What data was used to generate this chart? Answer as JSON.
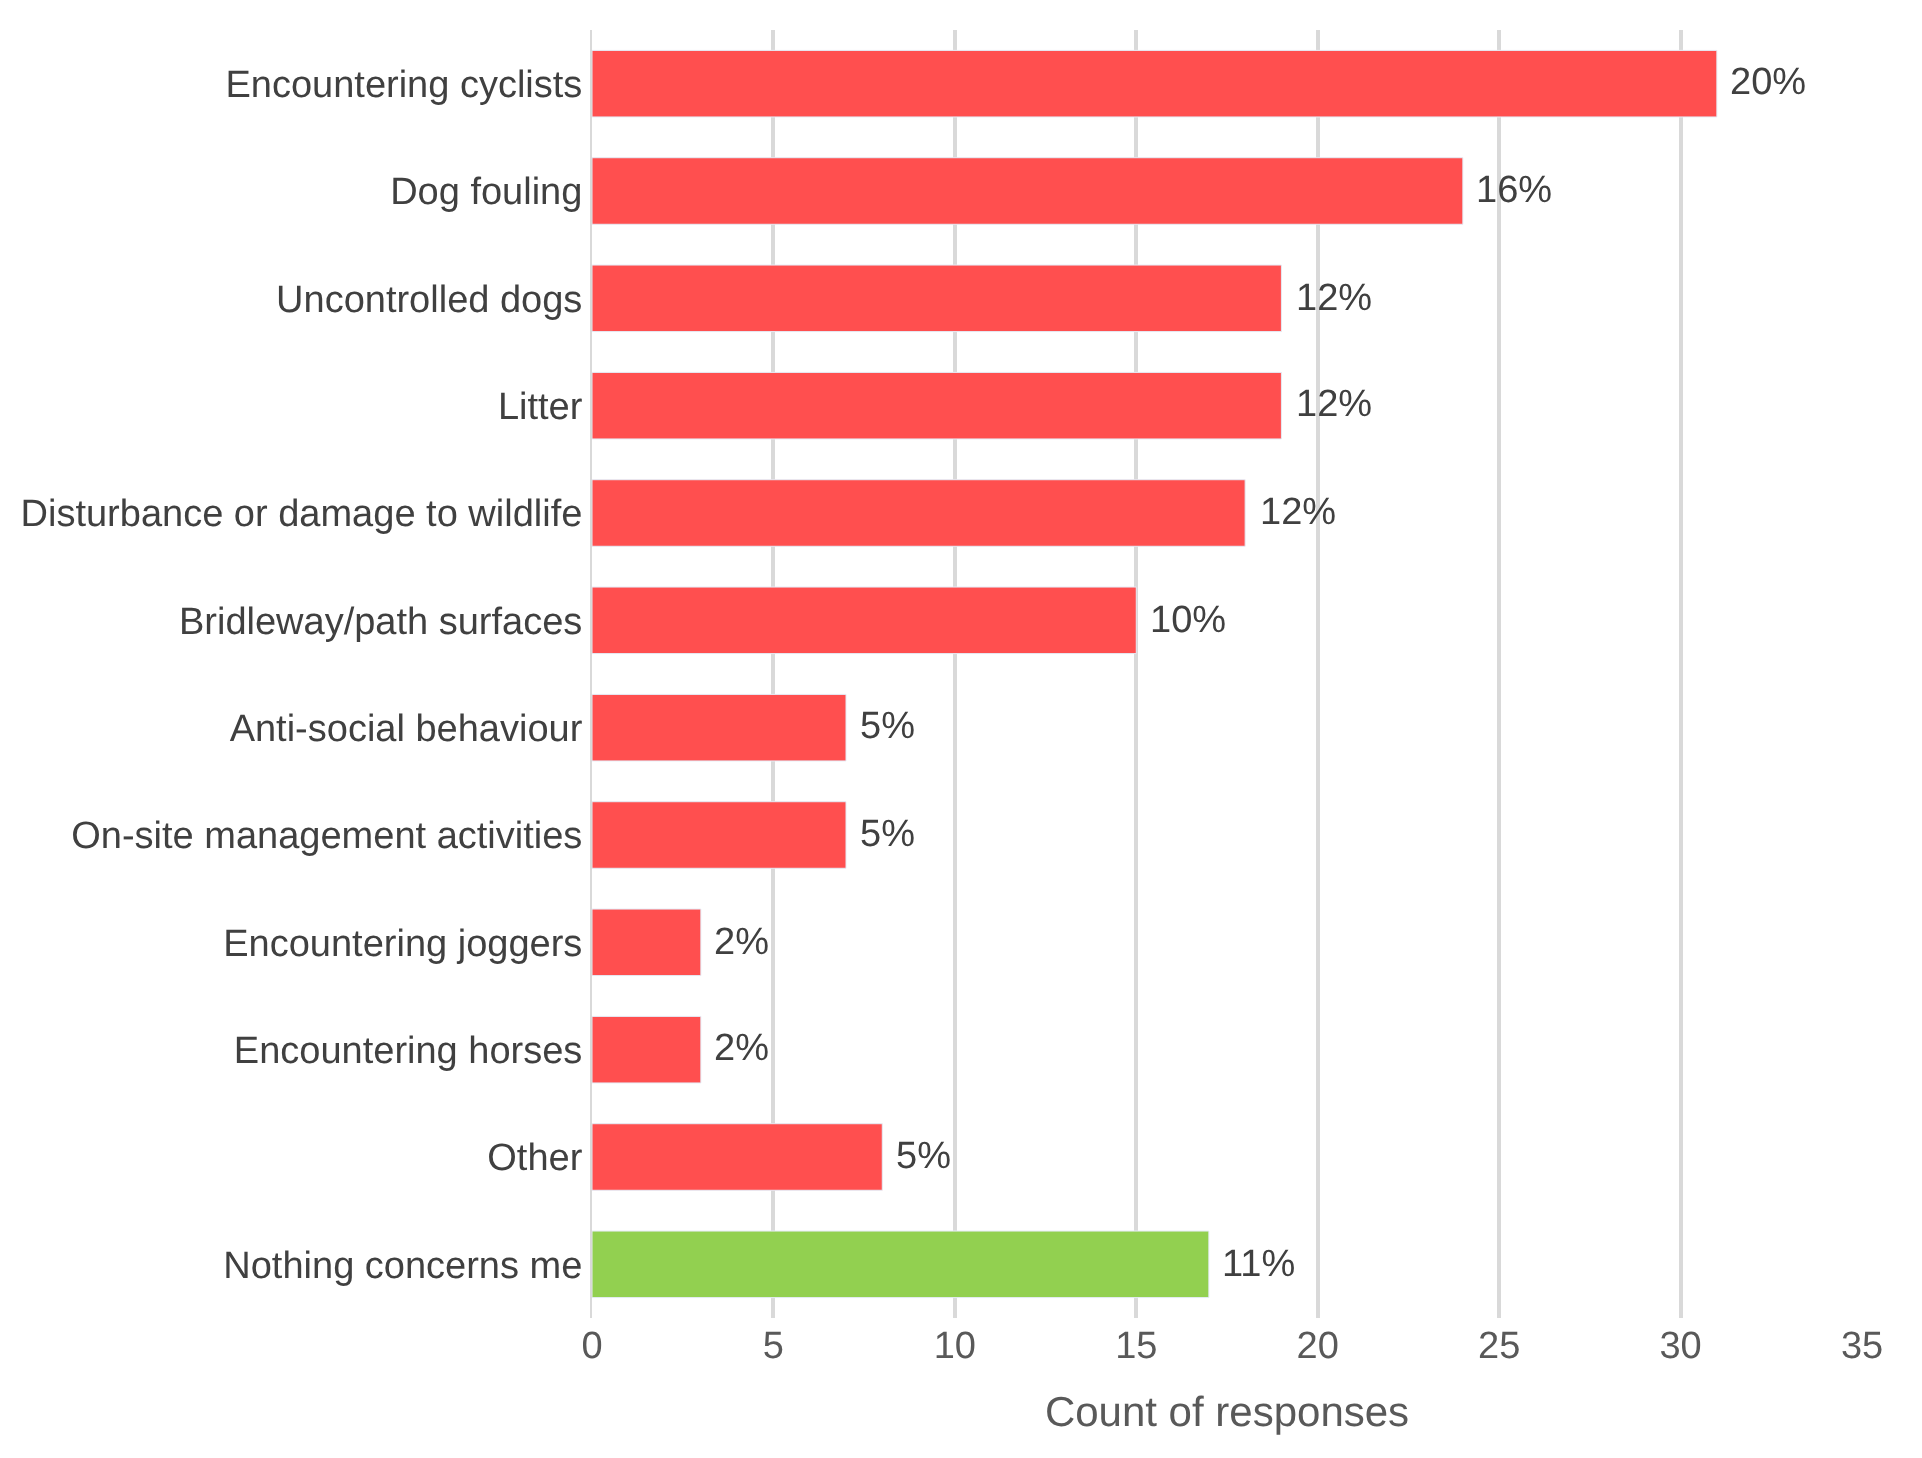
{
  "chart_data": {
    "type": "bar",
    "orientation": "horizontal",
    "xlabel": "Count of responses",
    "categories": [
      "Encountering cyclists",
      "Dog fouling",
      "Uncontrolled dogs",
      "Litter",
      "Disturbance or damage to wildlife",
      "Bridleway/path surfaces",
      "Anti-social behaviour",
      "On-site management activities",
      "Encountering joggers",
      "Encountering horses",
      "Other",
      "Nothing concerns me"
    ],
    "values": [
      31,
      24,
      19,
      19,
      18,
      15,
      7,
      7,
      3,
      3,
      8,
      17
    ],
    "colors": [
      "#ff4f4f",
      "#ff4f4f",
      "#ff4f4f",
      "#ff4f4f",
      "#ff4f4f",
      "#ff4f4f",
      "#ff4f4f",
      "#ff4f4f",
      "#ff4f4f",
      "#ff4f4f",
      "#ff4f4f",
      "#92d050"
    ],
    "annotations": [
      {
        "text": "20%",
        "x": 31,
        "y": "Encountering cyclists"
      },
      {
        "text": "16%",
        "x": 24,
        "y": "Dog fouling"
      },
      {
        "text": "12%",
        "x": 19,
        "y": "Uncontrolled dogs"
      },
      {
        "text": "12%",
        "x": 19,
        "y": "Litter"
      },
      {
        "text": "12%",
        "x": 18,
        "y": "Disturbance or damage to wildlife"
      },
      {
        "text": "10%",
        "x": 15,
        "y": "Bridleway/path surfaces"
      },
      {
        "text": "5%",
        "x": 7,
        "y": "Anti-social behaviour"
      },
      {
        "text": "5%",
        "x": 7,
        "y": "On-site management activities"
      },
      {
        "text": "2%",
        "x": 3,
        "y": "Encountering joggers"
      },
      {
        "text": "2%",
        "x": 3,
        "y": "Encountering horses"
      },
      {
        "text": "5%",
        "x": 8,
        "y": "Other"
      },
      {
        "text": "11%",
        "x": 17,
        "y": "Nothing concerns me"
      }
    ],
    "xlim": [
      0,
      35
    ],
    "xticks": [
      0,
      5,
      10,
      15,
      20,
      25,
      30,
      35
    ],
    "grid": "x"
  }
}
